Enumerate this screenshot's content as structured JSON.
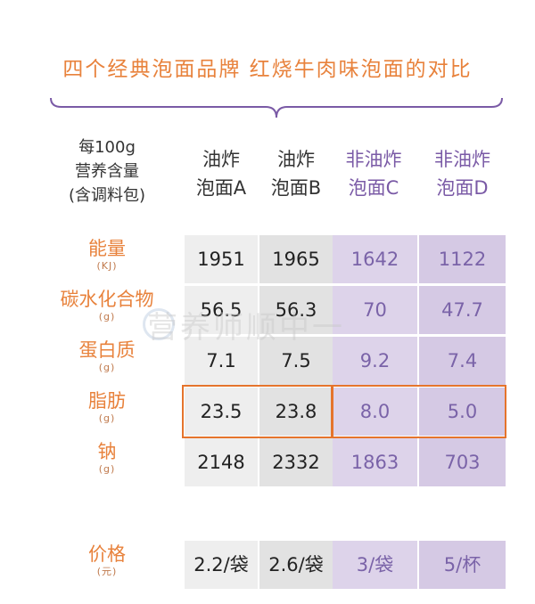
{
  "title": "四个经典泡面品牌  红烧牛肉味泡面的对比",
  "header": {
    "first_col": [
      "每100g",
      "营养含量",
      "(含调料包)"
    ],
    "columns": [
      {
        "line1": "油炸",
        "line2": "泡面A",
        "kind": "fried"
      },
      {
        "line1": "油炸",
        "line2": "泡面B",
        "kind": "fried"
      },
      {
        "line1": "非油炸",
        "line2": "泡面C",
        "kind": "nonfried"
      },
      {
        "line1": "非油炸",
        "line2": "泡面D",
        "kind": "nonfried"
      }
    ]
  },
  "watermark": "营养师顺中一",
  "colors": {
    "accent_orange": "#e8823c",
    "purple_text": "#7a5aa6",
    "highlight_border": "#e5742c",
    "fried_bg": "#eeeeee",
    "nonfried_bg": "#ddd3ea"
  },
  "chart_data": {
    "type": "table",
    "title": "四个经典泡面品牌  红烧牛肉味泡面的对比",
    "columns": [
      "油炸泡面A",
      "油炸泡面B",
      "非油炸泡面C",
      "非油炸泡面D"
    ],
    "highlighted_row": "脂肪",
    "rows": [
      {
        "name": "能量",
        "unit": "(KJ)",
        "values": [
          "1951",
          "1965",
          "1642",
          "1122"
        ]
      },
      {
        "name": "碳水化合物",
        "unit": "(g)",
        "values": [
          "56.5",
          "56.3",
          "70",
          "47.7"
        ]
      },
      {
        "name": "蛋白质",
        "unit": "(g)",
        "values": [
          "7.1",
          "7.5",
          "9.2",
          "7.4"
        ]
      },
      {
        "name": "脂肪",
        "unit": "(g)",
        "values": [
          "23.5",
          "23.8",
          "8.0",
          "5.0"
        ]
      },
      {
        "name": "钠",
        "unit": "(g)",
        "values": [
          "2148",
          "2332",
          "1863",
          "703"
        ]
      },
      {
        "name": "价格",
        "unit": "(元)",
        "values": [
          "2.2/袋",
          "2.6/袋",
          "3/袋",
          "5/杯"
        ]
      }
    ]
  }
}
